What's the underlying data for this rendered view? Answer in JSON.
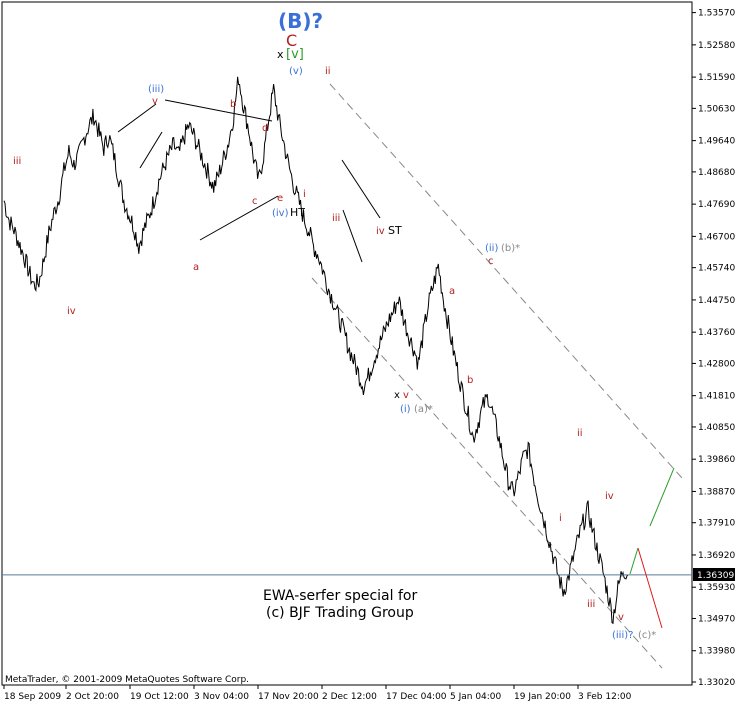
{
  "chart_data": {
    "type": "candlestick-line",
    "title": "",
    "xlabel": "",
    "ylabel": "",
    "ylim": [
      1.3302,
      1.5365
    ],
    "y_ticks": [
      "1.53570",
      "1.52580",
      "1.51590",
      "1.50630",
      "1.49640",
      "1.48680",
      "1.47690",
      "1.46700",
      "1.45740",
      "1.44750",
      "1.43760",
      "1.42800",
      "1.41810",
      "1.40850",
      "1.39860",
      "1.38870",
      "1.37910",
      "1.36920",
      "1.35930",
      "1.34970",
      "1.33980",
      "1.33020"
    ],
    "x_ticks": [
      "18 Sep 2009",
      "2 Oct 20:00",
      "19 Oct 12:00",
      "3 Nov 04:00",
      "17 Nov 20:00",
      "2 Dec 12:00",
      "17 Dec 04:00",
      "5 Jan 04:00",
      "19 Jan 20:00",
      "3 Feb 12:00"
    ],
    "current_price": "1.36309",
    "price_series": [
      1.478,
      1.472,
      1.469,
      1.465,
      1.461,
      1.456,
      1.452,
      1.453,
      1.46,
      1.468,
      1.474,
      1.479,
      1.487,
      1.493,
      1.489,
      1.492,
      1.497,
      1.501,
      1.504,
      1.499,
      1.494,
      1.498,
      1.492,
      1.485,
      1.478,
      1.474,
      1.47,
      1.464,
      1.469,
      1.473,
      1.478,
      1.484,
      1.488,
      1.492,
      1.495,
      1.492,
      1.497,
      1.501,
      1.498,
      1.494,
      1.49,
      1.486,
      1.482,
      1.486,
      1.491,
      1.496,
      1.504,
      1.516,
      1.507,
      1.5,
      1.491,
      1.484,
      1.492,
      1.503,
      1.512,
      1.503,
      1.496,
      1.489,
      1.483,
      1.478,
      1.473,
      1.469,
      1.464,
      1.461,
      1.456,
      1.451,
      1.447,
      1.442,
      1.438,
      1.433,
      1.429,
      1.425,
      1.421,
      1.424,
      1.429,
      1.433,
      1.437,
      1.441,
      1.444,
      1.448,
      1.442,
      1.437,
      1.433,
      1.428,
      1.437,
      1.446,
      1.452,
      1.458,
      1.448,
      1.44,
      1.432,
      1.425,
      1.418,
      1.412,
      1.405,
      1.41,
      1.415,
      1.418,
      1.412,
      1.406,
      1.399,
      1.392,
      1.388,
      1.393,
      1.399,
      1.402,
      1.394,
      1.387,
      1.381,
      1.375,
      1.369,
      1.363,
      1.358,
      1.362,
      1.368,
      1.374,
      1.379,
      1.383,
      1.376,
      1.37,
      1.364,
      1.357,
      1.35,
      1.359,
      1.365,
      1.363
    ],
    "annotations": [
      "(B)?",
      "C",
      "x",
      "[v]",
      "(v)",
      "ii",
      "(iii)",
      "v",
      "b",
      "d",
      "iii",
      "iv",
      "a",
      "c",
      "e",
      "(iv)",
      "HT",
      "i",
      "iii",
      "iv",
      "ST",
      "(ii)",
      "(b)*",
      "c",
      "a",
      "b",
      "x",
      "v",
      "(i)",
      "(a)*",
      "ii",
      "i",
      "iv",
      "iii",
      "v",
      "(iii)?",
      "(c)*"
    ],
    "subtitle_lines": [
      "EWA-serfer special for",
      "(c) BJF Trading Group"
    ],
    "copyright": "MetaTrader, © 2001-2009 MetaQuotes Software Corp.",
    "colors": {
      "blue_label": "#3a6fd8",
      "red_label": "#b22222",
      "green_label": "#2e9b2e",
      "gray_label": "#888888",
      "price_line": "#5a7a9a",
      "forecast_up": "#2ca02c",
      "forecast_down": "#e31a1c"
    }
  }
}
